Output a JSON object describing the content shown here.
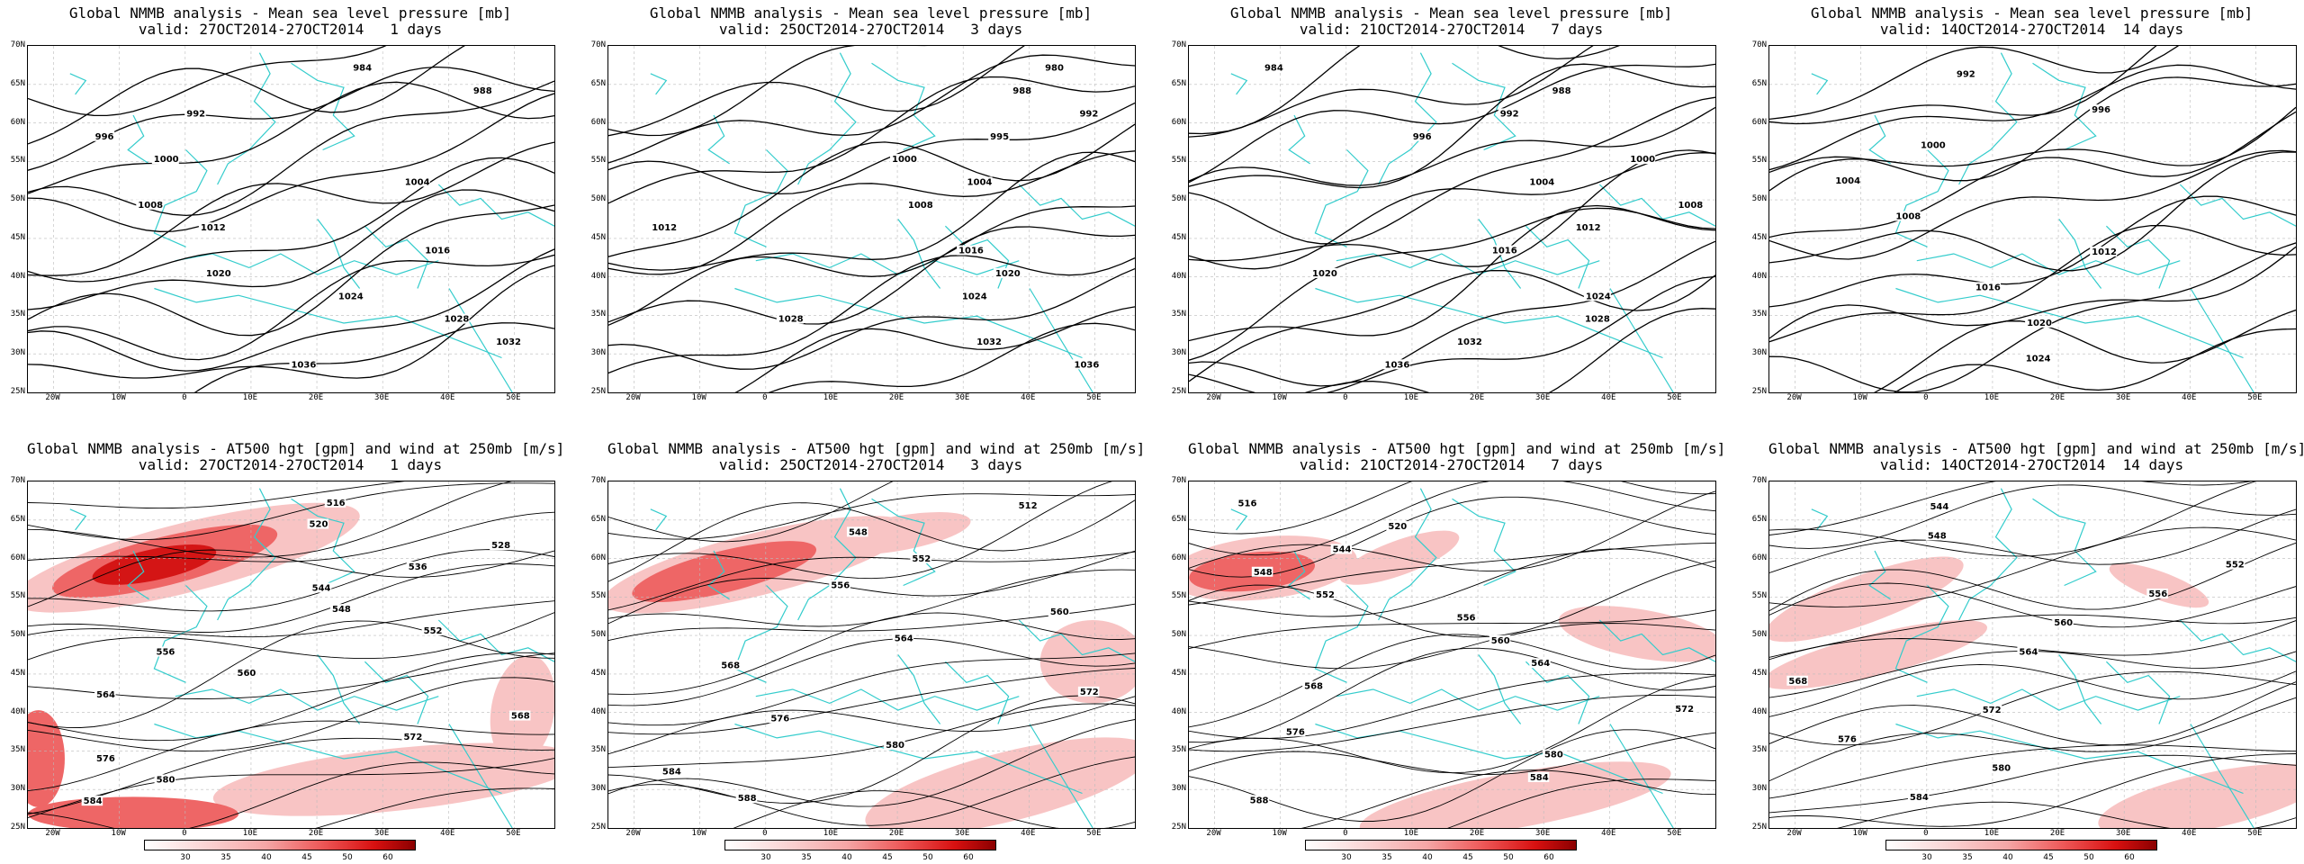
{
  "panels": [
    {
      "line1": "Global NMMB analysis - Mean sea level pressure [mb]",
      "line2": "valid: 27OCT2014-27OCT2014   1 days",
      "contour_labels": [
        "984",
        "988",
        "992",
        "996",
        "1000",
        "1004",
        "1008",
        "1012",
        "1016",
        "1020",
        "1024",
        "1028",
        "1032",
        "1036"
      ]
    },
    {
      "line1": "Global NMMB analysis - Mean sea level pressure [mb]",
      "line2": "valid: 25OCT2014-27OCT2014   3 days",
      "contour_labels": [
        "980",
        "988",
        "992",
        "995",
        "1000",
        "1004",
        "1008",
        "1012",
        "1016",
        "1020",
        "1024",
        "1028",
        "1032",
        "1036"
      ]
    },
    {
      "line1": "Global NMMB analysis - Mean sea level pressure [mb]",
      "line2": "valid: 21OCT2014-27OCT2014   7 days",
      "contour_labels": [
        "984",
        "988",
        "992",
        "996",
        "1000",
        "1004",
        "1008",
        "1012",
        "1016",
        "1020",
        "1024",
        "1028",
        "1032",
        "1036"
      ]
    },
    {
      "line1": "Global NMMB analysis - Mean sea level pressure [mb]",
      "line2": "valid: 14OCT2014-27OCT2014  14 days",
      "contour_labels": [
        "992",
        "996",
        "1000",
        "1004",
        "1008",
        "1012",
        "1016",
        "1020",
        "1024"
      ]
    },
    {
      "line1": "Global NMMB analysis - AT500 hgt [gpm] and wind at 250mb [m/s]",
      "line2": "valid: 27OCT2014-27OCT2014   1 days",
      "contour_labels": [
        "516",
        "520",
        "528",
        "536",
        "544",
        "548",
        "552",
        "556",
        "560",
        "564",
        "568",
        "572",
        "576",
        "580",
        "584"
      ]
    },
    {
      "line1": "Global NMMB analysis - AT500 hgt [gpm] and wind at 250mb [m/s]",
      "line2": "valid: 25OCT2014-27OCT2014   3 days",
      "contour_labels": [
        "512",
        "548",
        "552",
        "556",
        "560",
        "564",
        "568",
        "572",
        "576",
        "580",
        "584",
        "588"
      ]
    },
    {
      "line1": "Global NMMB analysis - AT500 hgt [gpm] and wind at 250mb [m/s]",
      "line2": "valid: 21OCT2014-27OCT2014   7 days",
      "contour_labels": [
        "516",
        "520",
        "544",
        "548",
        "552",
        "556",
        "560",
        "564",
        "568",
        "572",
        "576",
        "580",
        "584",
        "588"
      ]
    },
    {
      "line1": "Global NMMB analysis - AT500 hgt [gpm] and wind at 250mb [m/s]",
      "line2": "valid: 14OCT2014-27OCT2014  14 days",
      "contour_labels": [
        "544",
        "548",
        "552",
        "556",
        "560",
        "564",
        "568",
        "572",
        "576",
        "580",
        "584"
      ]
    }
  ],
  "lat_labels": [
    "70N",
    "65N",
    "60N",
    "55N",
    "50N",
    "45N",
    "40N",
    "35N",
    "30N",
    "25N"
  ],
  "lon_labels": [
    "20W",
    "10W",
    "0",
    "10E",
    "20E",
    "30E",
    "40E",
    "50E"
  ],
  "colorbar_labels": [
    "30",
    "35",
    "40",
    "45",
    "50",
    "60"
  ],
  "colors": {
    "coast": "#33cccc",
    "contour": "#000000",
    "jet_light": "#f8c4c4",
    "jet_mid": "#ee6666",
    "jet_dark": "#d41515"
  }
}
